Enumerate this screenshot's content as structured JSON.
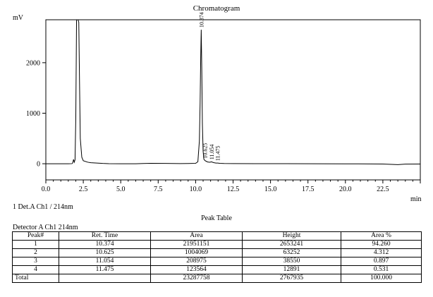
{
  "chart_data": {
    "type": "line",
    "title": "Chromatogram",
    "ylabel": "mV",
    "xlabel": "min",
    "xlim": [
      0,
      25
    ],
    "ylim": [
      -320,
      2850
    ],
    "x_ticks": [
      0.0,
      2.5,
      5.0,
      7.5,
      10.0,
      12.5,
      15.0,
      17.5,
      20.0,
      22.5
    ],
    "x_tick_labels": [
      "0.0",
      "2.5",
      "5.0",
      "7.5",
      "10.0",
      "12.5",
      "15.0",
      "17.5",
      "20.0",
      "22.5"
    ],
    "y_ticks": [
      0,
      1000,
      2000
    ],
    "y_tick_labels": [
      "0",
      "1000",
      "2000"
    ],
    "grid": false,
    "series": [
      {
        "x": [
          0.0,
          1.5,
          1.75,
          1.8,
          1.85,
          1.9,
          1.95,
          2.0,
          2.05,
          2.1,
          2.15,
          2.2,
          2.25,
          2.3,
          2.4,
          2.5,
          2.8,
          3.0,
          3.3,
          3.6,
          3.8,
          4.2,
          5.0,
          6.0,
          6.5,
          7.0,
          8.0,
          9.0,
          9.5,
          10.0,
          10.15,
          10.25,
          10.3,
          10.34,
          10.374,
          10.41,
          10.45,
          10.5,
          10.55,
          10.625,
          10.7,
          10.8,
          10.95,
          11.054,
          11.2,
          11.35,
          11.475,
          11.6,
          11.9,
          12.5,
          14.0,
          16.0,
          18.0,
          20.0,
          22.5,
          23.5,
          24.0,
          25.0
        ],
        "y": [
          0,
          0,
          2,
          20,
          85,
          30,
          80,
          900,
          2850,
          2850,
          2850,
          2800,
          1600,
          500,
          130,
          60,
          30,
          20,
          15,
          10,
          6,
          2,
          0,
          0,
          5,
          8,
          6,
          3,
          5,
          8,
          40,
          450,
          1200,
          2100,
          2653,
          1900,
          800,
          250,
          90,
          63,
          50,
          35,
          30,
          38,
          22,
          14,
          13,
          8,
          4,
          3,
          2,
          1,
          0,
          -2,
          -5,
          -18,
          -8,
          -5
        ]
      }
    ],
    "annotations": [
      {
        "x": 10.374,
        "y": 2653,
        "text": "10.374"
      },
      {
        "x": 10.625,
        "y": 63,
        "text": "10.625"
      },
      {
        "x": 11.054,
        "y": 39,
        "text": "11.054"
      },
      {
        "x": 11.475,
        "y": 13,
        "text": "11.475"
      }
    ]
  },
  "labels": {
    "unit_y": "mV",
    "unit_x": "min",
    "detector": "1 Det.A Ch1 / 214nm",
    "peak_table_title": "Peak Table",
    "detector_channel": "Detector A Ch1 214nm"
  },
  "peak_table": {
    "headers": [
      "Peak#",
      "Ret. Time",
      "Area",
      "Height",
      "Area %"
    ],
    "rows": [
      [
        "1",
        "10.374",
        "21951151",
        "2653241",
        "94.260"
      ],
      [
        "2",
        "10.625",
        "1004069",
        "63252",
        "4.312"
      ],
      [
        "3",
        "11.054",
        "208975",
        "38550",
        "0.897"
      ],
      [
        "4",
        "11.475",
        "123564",
        "12891",
        "0.531"
      ]
    ],
    "total": [
      "Total",
      "",
      "23287758",
      "2767935",
      "100.000"
    ]
  }
}
